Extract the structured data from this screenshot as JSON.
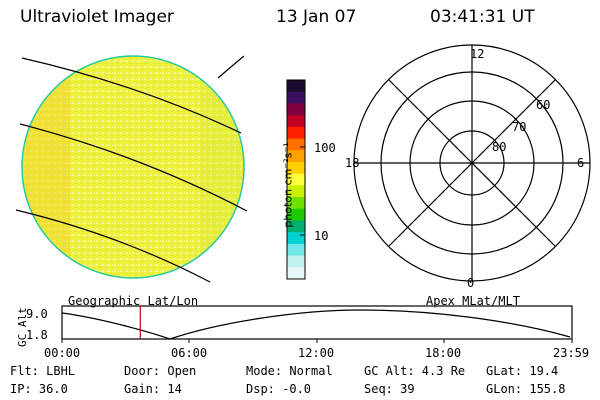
{
  "header": {
    "title": "Ultraviolet Imager",
    "date": "13 Jan 07",
    "time": "03:41:31 UT"
  },
  "globe": {
    "label": "Geographic Lat/Lon",
    "fill_color": "#ecef3a",
    "rim_color": "#22cfa0"
  },
  "colorbar": {
    "unit_label": "photon cm⁻²s⁻¹",
    "ticks": [
      "100",
      "10"
    ],
    "colors": [
      "#1a0a2e",
      "#3a1060",
      "#800040",
      "#c00020",
      "#ff2000",
      "#ff7000",
      "#ffa000",
      "#ffd000",
      "#ffff40",
      "#c8f000",
      "#70e000",
      "#20c800",
      "#00b070",
      "#00d0d0",
      "#70e8e8",
      "#c0f0f0",
      "#e8f8f8"
    ]
  },
  "polar": {
    "label": "Apex MLat/MLT",
    "mlt_labels": {
      "top": "12",
      "left": "18",
      "right": "6",
      "bottom": "0"
    },
    "lat_labels": [
      "60",
      "70",
      "80"
    ]
  },
  "altitude_plot": {
    "ylabel": "GC Alt",
    "ymax_label": "9.0",
    "ymin_label": "1.8",
    "x_ticks": [
      "00:00",
      "06:00",
      "12:00",
      "18:00",
      "23:59"
    ],
    "current_time_marker": "03:41",
    "marker_color": "#cc0000"
  },
  "info": {
    "row1": {
      "flt": "Flt: LBHL",
      "door": "Door: Open",
      "mode": "Mode: Normal",
      "gc_alt": "GC Alt: 4.3 Re",
      "glat": "GLat:  19.4"
    },
    "row2": {
      "ip": "IP: 36.0",
      "gain": "Gain: 14",
      "dsp": "Dsp:   -0.0",
      "seq": "Seq: 39",
      "glon": "GLon: 155.8"
    }
  }
}
